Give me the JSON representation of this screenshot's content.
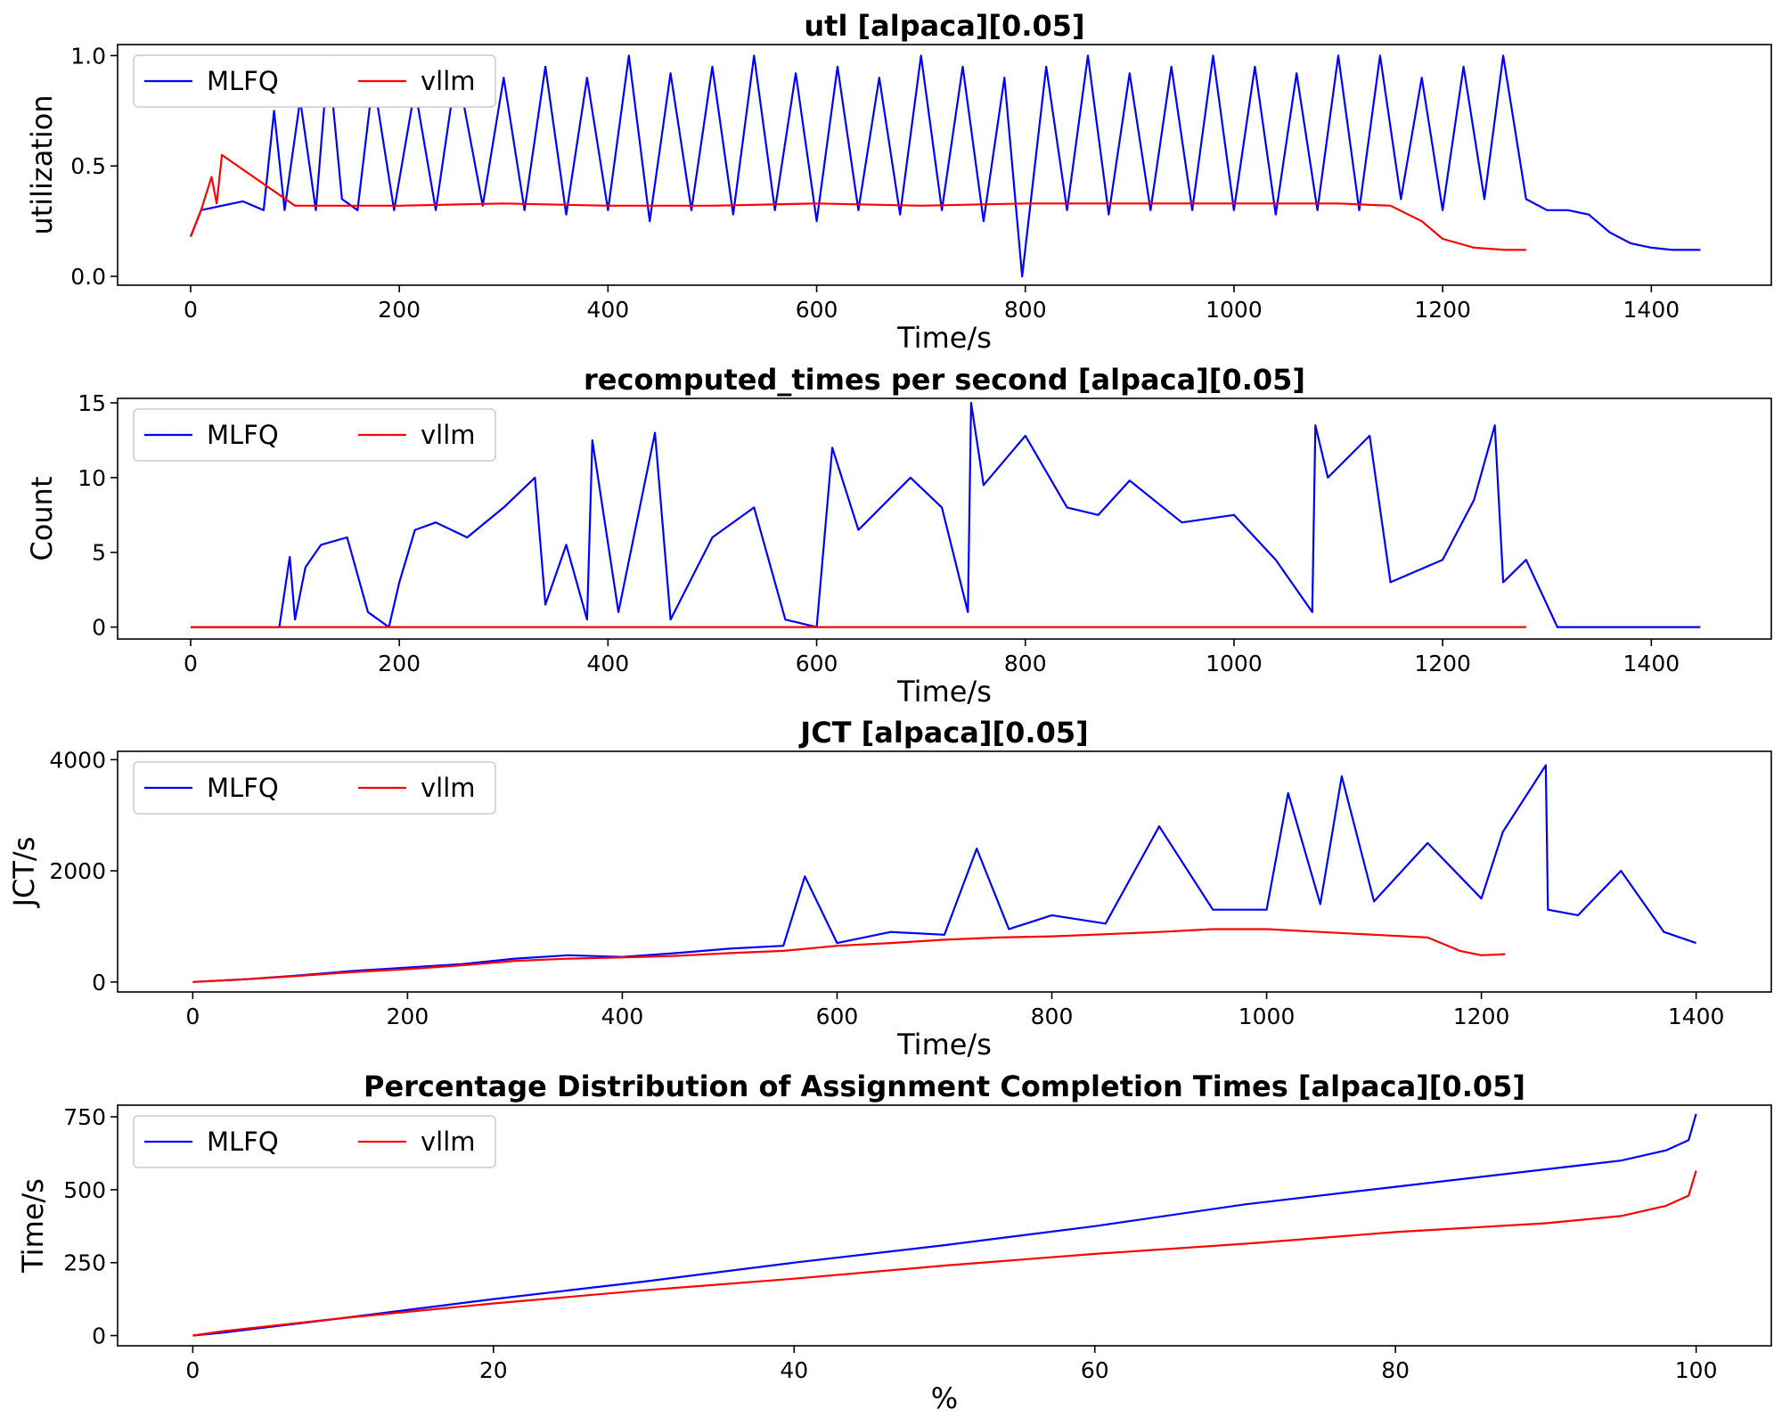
{
  "colors": {
    "MLFQ": "#0000ff",
    "vllm": "#ff0000",
    "axes": "#000000",
    "background": "#ffffff"
  },
  "chart_data": [
    {
      "type": "line",
      "title": "utl [alpaca][0.05]",
      "xlabel": "Time/s",
      "ylabel": "utilization",
      "xlim": [
        -70,
        1515
      ],
      "ylim": [
        -0.04,
        1.05
      ],
      "xticks": [
        0,
        200,
        400,
        600,
        800,
        1000,
        1200,
        1400
      ],
      "xtick_labels": [
        "0",
        "200",
        "400",
        "600",
        "800",
        "1000",
        "1200",
        "1400"
      ],
      "yticks": [
        0.0,
        0.5,
        1.0
      ],
      "ytick_labels": [
        "0.0",
        "0.5",
        "1.0"
      ],
      "legend": {
        "placement": "top-left",
        "columns": 2
      },
      "series": [
        {
          "name": "MLFQ",
          "color": "#0000ff",
          "x": [
            0,
            10,
            30,
            50,
            70,
            80,
            90,
            105,
            120,
            132,
            145,
            160,
            175,
            195,
            215,
            235,
            255,
            280,
            300,
            320,
            340,
            360,
            380,
            400,
            420,
            440,
            460,
            480,
            500,
            520,
            540,
            560,
            580,
            600,
            620,
            640,
            660,
            680,
            700,
            720,
            740,
            760,
            780,
            797,
            820,
            840,
            860,
            880,
            900,
            920,
            940,
            960,
            980,
            1000,
            1020,
            1040,
            1060,
            1080,
            1100,
            1120,
            1140,
            1160,
            1180,
            1200,
            1220,
            1240,
            1258,
            1280,
            1300,
            1320,
            1340,
            1360,
            1380,
            1400,
            1420,
            1447
          ],
          "y": [
            0.18,
            0.3,
            0.32,
            0.34,
            0.3,
            0.75,
            0.3,
            0.8,
            0.3,
            1.0,
            0.35,
            0.3,
            0.9,
            0.3,
            0.85,
            0.3,
            0.95,
            0.32,
            0.9,
            0.3,
            0.95,
            0.28,
            0.9,
            0.3,
            1.0,
            0.25,
            0.92,
            0.3,
            0.95,
            0.28,
            1.0,
            0.3,
            0.92,
            0.25,
            0.95,
            0.3,
            0.9,
            0.28,
            1.0,
            0.3,
            0.95,
            0.25,
            0.9,
            0.0,
            0.95,
            0.3,
            1.0,
            0.28,
            0.92,
            0.3,
            0.95,
            0.3,
            1.0,
            0.3,
            0.95,
            0.28,
            0.92,
            0.3,
            1.0,
            0.3,
            1.0,
            0.35,
            0.9,
            0.3,
            0.95,
            0.35,
            1.0,
            0.35,
            0.3,
            0.3,
            0.28,
            0.2,
            0.15,
            0.13,
            0.12,
            0.12
          ]
        },
        {
          "name": "vllm",
          "color": "#ff0000",
          "x": [
            0,
            10,
            20,
            25,
            30,
            100,
            200,
            300,
            400,
            500,
            600,
            700,
            800,
            900,
            1000,
            1100,
            1150,
            1180,
            1200,
            1230,
            1260,
            1280
          ],
          "y": [
            0.18,
            0.3,
            0.45,
            0.33,
            0.55,
            0.32,
            0.32,
            0.33,
            0.32,
            0.32,
            0.33,
            0.32,
            0.33,
            0.33,
            0.33,
            0.33,
            0.32,
            0.25,
            0.17,
            0.13,
            0.12,
            0.12
          ]
        }
      ]
    },
    {
      "type": "line",
      "title": "recomputed_times per second [alpaca][0.05]",
      "xlabel": "Time/s",
      "ylabel": "Count",
      "xlim": [
        -70,
        1515
      ],
      "ylim": [
        -0.8,
        15.3
      ],
      "xticks": [
        0,
        200,
        400,
        600,
        800,
        1000,
        1200,
        1400
      ],
      "xtick_labels": [
        "0",
        "200",
        "400",
        "600",
        "800",
        "1000",
        "1200",
        "1400"
      ],
      "yticks": [
        0,
        5,
        10,
        15
      ],
      "ytick_labels": [
        "0",
        "5",
        "10",
        "15"
      ],
      "legend": {
        "placement": "top-left",
        "columns": 2
      },
      "series": [
        {
          "name": "MLFQ",
          "color": "#0000ff",
          "x": [
            0,
            85,
            95,
            100,
            110,
            125,
            150,
            170,
            190,
            200,
            215,
            235,
            265,
            300,
            330,
            340,
            360,
            380,
            385,
            410,
            445,
            460,
            500,
            540,
            570,
            600,
            615,
            640,
            690,
            720,
            745,
            748,
            760,
            800,
            840,
            870,
            900,
            950,
            1000,
            1040,
            1075,
            1078,
            1090,
            1130,
            1150,
            1200,
            1230,
            1250,
            1258,
            1280,
            1300,
            1310,
            1447
          ],
          "y": [
            0,
            0,
            4.7,
            0.5,
            4.0,
            5.5,
            6.0,
            1.0,
            0,
            3.0,
            6.5,
            7.0,
            6.0,
            8.0,
            10.0,
            1.5,
            5.5,
            0.5,
            12.5,
            1.0,
            13.0,
            0.5,
            6.0,
            8.0,
            0.5,
            0,
            12.0,
            6.5,
            10.0,
            8.0,
            1.0,
            15.0,
            9.5,
            12.8,
            8.0,
            7.5,
            9.8,
            7.0,
            7.5,
            4.5,
            1.0,
            13.5,
            10.0,
            12.8,
            3.0,
            4.5,
            8.5,
            13.5,
            3.0,
            4.5,
            1.5,
            0,
            0
          ]
        },
        {
          "name": "vllm",
          "color": "#ff0000",
          "x": [
            0,
            1280
          ],
          "y": [
            0,
            0
          ]
        }
      ]
    },
    {
      "type": "line",
      "title": "JCT [alpaca][0.05]",
      "xlabel": "Time/s",
      "ylabel": "JCT/s",
      "xlim": [
        -70,
        1470
      ],
      "ylim": [
        -180,
        4150
      ],
      "xticks": [
        0,
        200,
        400,
        600,
        800,
        1000,
        1200,
        1400
      ],
      "xtick_labels": [
        "0",
        "200",
        "400",
        "600",
        "800",
        "1000",
        "1200",
        "1400"
      ],
      "yticks": [
        0,
        2000,
        4000
      ],
      "ytick_labels": [
        "0",
        "2000",
        "4000"
      ],
      "legend": {
        "placement": "top-left",
        "columns": 2
      },
      "series": [
        {
          "name": "MLFQ",
          "color": "#0000ff",
          "x": [
            0,
            50,
            100,
            150,
            200,
            250,
            300,
            350,
            400,
            450,
            500,
            550,
            570,
            600,
            650,
            700,
            730,
            760,
            800,
            850,
            900,
            950,
            1000,
            1020,
            1050,
            1070,
            1100,
            1150,
            1200,
            1220,
            1260,
            1262,
            1290,
            1330,
            1370,
            1400
          ],
          "y": [
            0,
            50,
            120,
            200,
            260,
            320,
            420,
            480,
            450,
            520,
            600,
            650,
            1900,
            700,
            900,
            850,
            2400,
            950,
            1200,
            1050,
            2800,
            1300,
            1300,
            3400,
            1400,
            3700,
            1450,
            2500,
            1500,
            2700,
            3900,
            1300,
            1200,
            2000,
            900,
            700
          ]
        },
        {
          "name": "vllm",
          "color": "#ff0000",
          "x": [
            0,
            50,
            100,
            150,
            200,
            250,
            300,
            350,
            400,
            450,
            500,
            550,
            600,
            650,
            700,
            750,
            800,
            850,
            900,
            950,
            1000,
            1050,
            1100,
            1150,
            1180,
            1200,
            1222
          ],
          "y": [
            0,
            50,
            110,
            180,
            230,
            300,
            380,
            420,
            440,
            470,
            520,
            560,
            650,
            700,
            760,
            800,
            820,
            860,
            900,
            950,
            950,
            900,
            850,
            800,
            560,
            480,
            500
          ]
        }
      ]
    },
    {
      "type": "line",
      "title": "Percentage Distribution of Assignment Completion Times [alpaca][0.05]",
      "xlabel": "%",
      "ylabel": "Time/s",
      "xlim": [
        -5,
        105
      ],
      "ylim": [
        -35,
        790
      ],
      "xticks": [
        0,
        20,
        40,
        60,
        80,
        100
      ],
      "xtick_labels": [
        "0",
        "20",
        "40",
        "60",
        "80",
        "100"
      ],
      "yticks": [
        0,
        250,
        500,
        750
      ],
      "ytick_labels": [
        "0",
        "250",
        "500",
        "750"
      ],
      "legend": {
        "placement": "top-left",
        "columns": 2
      },
      "series": [
        {
          "name": "MLFQ",
          "color": "#0000ff",
          "x": [
            0,
            2,
            10,
            20,
            30,
            40,
            50,
            60,
            70,
            80,
            90,
            95,
            98,
            99.5,
            100
          ],
          "y": [
            0,
            10,
            60,
            125,
            185,
            250,
            310,
            375,
            450,
            510,
            570,
            600,
            635,
            670,
            760
          ]
        },
        {
          "name": "vllm",
          "color": "#ff0000",
          "x": [
            0,
            2,
            10,
            20,
            30,
            40,
            50,
            60,
            70,
            80,
            90,
            95,
            98,
            99.5,
            100
          ],
          "y": [
            0,
            15,
            60,
            110,
            155,
            195,
            240,
            280,
            315,
            355,
            385,
            410,
            445,
            480,
            565
          ]
        }
      ]
    }
  ]
}
